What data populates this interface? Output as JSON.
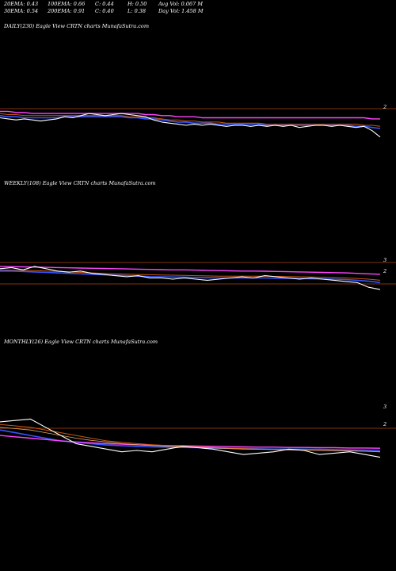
{
  "header": {
    "row1": [
      "20EMA: 0.43",
      "100EMA: 0.66",
      "C: 0.44",
      "H: 0.50",
      "Avg Vol: 0.067 M"
    ],
    "row2": [
      "30EMA: 0.54",
      "200EMA: 0.91",
      "C: 0.40",
      "L: 0.38",
      "Day Vol: 1.458 M"
    ]
  },
  "colors": {
    "background": "#000000",
    "price": "#ffffff",
    "ema_blue": "#3355ff",
    "ema_magenta": "#ff44ff",
    "ema_orange": "#cc5511",
    "ref_line": "#aa4411"
  },
  "chart_data": [
    {
      "type": "line",
      "title": "DAILY(230) Eagle   View  CRTN  charts MunafaSutra.com",
      "y_ticks": [
        "2"
      ],
      "series": [
        {
          "role": "price",
          "values": [
            0.62,
            0.61,
            0.6,
            0.61,
            0.6,
            0.59,
            0.6,
            0.61,
            0.63,
            0.62,
            0.64,
            0.66,
            0.65,
            0.64,
            0.65,
            0.66,
            0.65,
            0.64,
            0.63,
            0.6,
            0.58,
            0.57,
            0.56,
            0.55,
            0.56,
            0.55,
            0.56,
            0.55,
            0.54,
            0.55,
            0.55,
            0.54,
            0.55,
            0.54,
            0.55,
            0.54,
            0.55,
            0.53,
            0.54,
            0.55,
            0.55,
            0.54,
            0.55,
            0.54,
            0.53,
            0.54,
            0.5,
            0.44
          ]
        },
        {
          "role": "ema-blue",
          "values": [
            0.64,
            0.63,
            0.63,
            0.62,
            0.62,
            0.62,
            0.62,
            0.62,
            0.63,
            0.63,
            0.63,
            0.63,
            0.63,
            0.63,
            0.63,
            0.63,
            0.62,
            0.62,
            0.61,
            0.61,
            0.6,
            0.59,
            0.58,
            0.58,
            0.57,
            0.57,
            0.57,
            0.56,
            0.56,
            0.56,
            0.56,
            0.56,
            0.56,
            0.55,
            0.55,
            0.55,
            0.55,
            0.55,
            0.55,
            0.55,
            0.55,
            0.55,
            0.55,
            0.55,
            0.54,
            0.54,
            0.53,
            0.52
          ]
        },
        {
          "role": "ema-magenta",
          "values": [
            0.68,
            0.68,
            0.67,
            0.67,
            0.66,
            0.66,
            0.66,
            0.66,
            0.66,
            0.66,
            0.66,
            0.66,
            0.66,
            0.66,
            0.66,
            0.66,
            0.66,
            0.66,
            0.65,
            0.65,
            0.64,
            0.64,
            0.63,
            0.63,
            0.63,
            0.62,
            0.62,
            0.62,
            0.62,
            0.62,
            0.62,
            0.62,
            0.62,
            0.62,
            0.62,
            0.62,
            0.62,
            0.62,
            0.62,
            0.62,
            0.62,
            0.62,
            0.62,
            0.62,
            0.62,
            0.62,
            0.61,
            0.61
          ]
        },
        {
          "role": "ema-orange",
          "values": [
            0.66,
            0.65,
            0.65,
            0.64,
            0.64,
            0.64,
            0.64,
            0.64,
            0.64,
            0.64,
            0.64,
            0.64,
            0.64,
            0.64,
            0.64,
            0.64,
            0.63,
            0.63,
            0.62,
            0.62,
            0.61,
            0.6,
            0.6,
            0.59,
            0.59,
            0.58,
            0.58,
            0.58,
            0.57,
            0.57,
            0.57,
            0.57,
            0.57,
            0.56,
            0.56,
            0.56,
            0.56,
            0.56,
            0.56,
            0.56,
            0.56,
            0.56,
            0.56,
            0.56,
            0.56,
            0.55,
            0.55,
            0.54
          ]
        }
      ]
    },
    {
      "type": "line",
      "title": "WEEKLY(108) Eagle   View  CRTN  charts MunafaSutra.com",
      "y_ticks": [
        "3",
        "2"
      ],
      "series": [
        {
          "role": "price",
          "values": [
            2.1,
            2.15,
            2.05,
            2.2,
            2.1,
            2.0,
            1.95,
            2.0,
            1.9,
            1.85,
            1.8,
            1.75,
            1.8,
            1.7,
            1.7,
            1.65,
            1.7,
            1.65,
            1.6,
            1.65,
            1.7,
            1.75,
            1.7,
            1.8,
            1.75,
            1.7,
            1.65,
            1.7,
            1.65,
            1.6,
            1.55,
            1.5,
            1.3,
            1.2
          ]
        },
        {
          "role": "ema-blue",
          "values": [
            2.0,
            2.0,
            1.98,
            1.96,
            1.94,
            1.92,
            1.9,
            1.88,
            1.86,
            1.84,
            1.82,
            1.8,
            1.78,
            1.76,
            1.75,
            1.74,
            1.73,
            1.72,
            1.71,
            1.7,
            1.7,
            1.7,
            1.7,
            1.7,
            1.69,
            1.69,
            1.68,
            1.67,
            1.66,
            1.65,
            1.63,
            1.6,
            1.56,
            1.5
          ]
        },
        {
          "role": "ema-magenta",
          "values": [
            2.2,
            2.19,
            2.18,
            2.17,
            2.16,
            2.15,
            2.14,
            2.13,
            2.12,
            2.11,
            2.1,
            2.09,
            2.08,
            2.07,
            2.06,
            2.05,
            2.05,
            2.04,
            2.03,
            2.02,
            2.01,
            2.0,
            2.0,
            1.99,
            1.98,
            1.97,
            1.96,
            1.95,
            1.94,
            1.93,
            1.92,
            1.9,
            1.88,
            1.86
          ]
        },
        {
          "role": "ema-orange",
          "values": [
            2.05,
            2.04,
            2.03,
            2.02,
            2.0,
            1.98,
            1.96,
            1.94,
            1.92,
            1.9,
            1.88,
            1.86,
            1.85,
            1.84,
            1.83,
            1.82,
            1.81,
            1.8,
            1.79,
            1.78,
            1.78,
            1.78,
            1.78,
            1.78,
            1.77,
            1.76,
            1.75,
            1.74,
            1.73,
            1.72,
            1.7,
            1.68,
            1.65,
            1.6
          ]
        }
      ]
    },
    {
      "type": "line",
      "title": "MONTHLY(26) Eagle   View  CRTN  charts MunafaSutra.com",
      "y_ticks": [
        "3",
        "2"
      ],
      "series": [
        {
          "role": "price",
          "values": [
            2.7,
            2.75,
            2.8,
            2.5,
            2.2,
            1.9,
            1.8,
            1.7,
            1.6,
            1.65,
            1.6,
            1.7,
            1.8,
            1.75,
            1.7,
            1.6,
            1.5,
            1.55,
            1.6,
            1.7,
            1.65,
            1.5,
            1.55,
            1.6,
            1.5,
            1.4
          ]
        },
        {
          "role": "ema-blue",
          "values": [
            2.4,
            2.3,
            2.2,
            2.1,
            2.0,
            1.95,
            1.9,
            1.85,
            1.82,
            1.8,
            1.78,
            1.77,
            1.76,
            1.75,
            1.74,
            1.73,
            1.72,
            1.71,
            1.7,
            1.7,
            1.7,
            1.69,
            1.68,
            1.67,
            1.66,
            1.65
          ]
        },
        {
          "role": "ema-magenta",
          "values": [
            2.2,
            2.15,
            2.1,
            2.05,
            2.0,
            1.96,
            1.93,
            1.9,
            1.88,
            1.86,
            1.84,
            1.83,
            1.82,
            1.81,
            1.8,
            1.79,
            1.78,
            1.77,
            1.77,
            1.76,
            1.76,
            1.75,
            1.75,
            1.74,
            1.74,
            1.73
          ]
        },
        {
          "role": "ema-orange",
          "values": [
            2.6,
            2.55,
            2.5,
            2.4,
            2.3,
            2.2,
            2.1,
            2.0,
            1.95,
            1.9,
            1.86,
            1.83,
            1.8,
            1.78,
            1.76,
            1.74,
            1.72,
            1.7,
            1.69,
            1.68,
            1.67,
            1.66,
            1.65,
            1.64,
            1.62,
            1.6
          ]
        },
        {
          "role": "ema-orange-2",
          "values": [
            2.5,
            2.45,
            2.4,
            2.3,
            2.2,
            2.1,
            2.02,
            1.96,
            1.9,
            1.86,
            1.83,
            1.8,
            1.78,
            1.76,
            1.74,
            1.72,
            1.7,
            1.69,
            1.68,
            1.67,
            1.66,
            1.65,
            1.64,
            1.63,
            1.62,
            1.6
          ]
        }
      ]
    }
  ]
}
